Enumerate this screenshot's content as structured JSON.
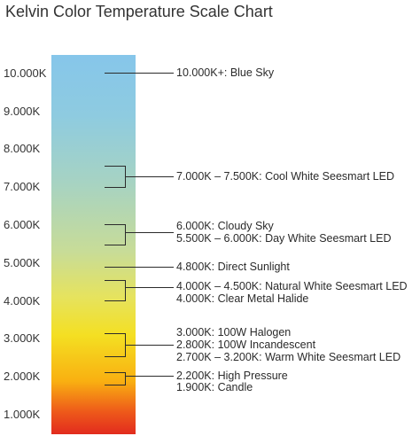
{
  "title": "Kelvin Color Temperature Scale Chart",
  "scale": {
    "gradient_colors": [
      "#86c6ea",
      "#8ecbe0",
      "#a7d3c2",
      "#c8dc97",
      "#e6e35d",
      "#f4df22",
      "#f9b011",
      "#ee5a1a",
      "#e22b1e"
    ],
    "tick_labels": [
      "10.000K",
      "9.000K",
      "8.000K",
      "7.000K",
      "6.000K",
      "5.000K",
      "4.000K",
      "3.000K",
      "2.000K",
      "1.000K"
    ]
  },
  "annotations": [
    "10.000K+: Blue Sky",
    "7.000K – 7.500K: Cool White Seesmart LED",
    "6.000K: Cloudy Sky",
    "5.500K – 6.000K: Day White Seesmart LED",
    "4.800K: Direct Sunlight",
    "4.000K – 4.500K: Natural White Seesmart LED",
    "4.000K: Clear Metal Halide",
    "3.000K: 100W Halogen",
    "2.800K: 100W Incandescent",
    "2.700K – 3.200K: Warm White Seesmart LED",
    "2.200K: High Pressure",
    "1.900K: Candle"
  ]
}
